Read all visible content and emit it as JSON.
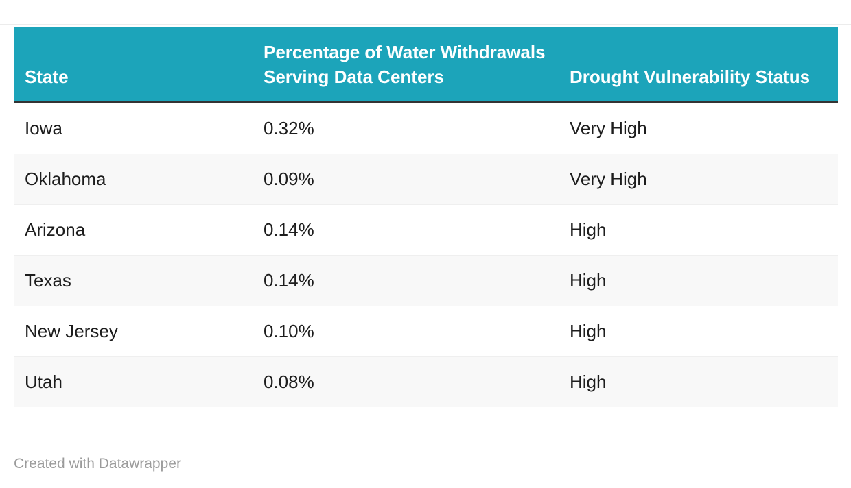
{
  "table": {
    "columns": [
      {
        "id": "state",
        "label": "State"
      },
      {
        "id": "percentage",
        "label": "Percentage of Water Withdrawals Serving Data Centers"
      },
      {
        "id": "status",
        "label": "Drought Vulnerability Status"
      }
    ],
    "rows": [
      {
        "state": "Iowa",
        "percentage": "0.32%",
        "status": "Very High"
      },
      {
        "state": "Oklahoma",
        "percentage": "0.09%",
        "status": "Very High"
      },
      {
        "state": "Arizona",
        "percentage": "0.14%",
        "status": "High"
      },
      {
        "state": "Texas",
        "percentage": "0.14%",
        "status": "High"
      },
      {
        "state": "New Jersey",
        "percentage": "0.10%",
        "status": "High"
      },
      {
        "state": "Utah",
        "percentage": "0.08%",
        "status": "High"
      }
    ]
  },
  "footer": {
    "attribution": "Created with Datawrapper"
  },
  "colors": {
    "header_bg": "#1CA4BA",
    "header_text": "#ffffff",
    "header_border": "#333333",
    "row_alt_bg": "#f8f8f8",
    "body_text": "#1d1d1d",
    "footer_text": "#9b9b9b"
  },
  "chart_data": {
    "type": "table",
    "title": "",
    "columns": [
      "State",
      "Percentage of Water Withdrawals Serving Data Centers",
      "Drought Vulnerability Status"
    ],
    "rows": [
      [
        "Iowa",
        "0.32%",
        "Very High"
      ],
      [
        "Oklahoma",
        "0.09%",
        "Very High"
      ],
      [
        "Arizona",
        "0.14%",
        "High"
      ],
      [
        "Texas",
        "0.14%",
        "High"
      ],
      [
        "New Jersey",
        "0.10%",
        "High"
      ],
      [
        "Utah",
        "0.08%",
        "High"
      ]
    ],
    "attribution": "Created with Datawrapper",
    "layout_hints": {
      "header_style": "teal background, white bold text, dark bottom rule",
      "row_striping": "even rows light gray",
      "grid": "off"
    }
  }
}
